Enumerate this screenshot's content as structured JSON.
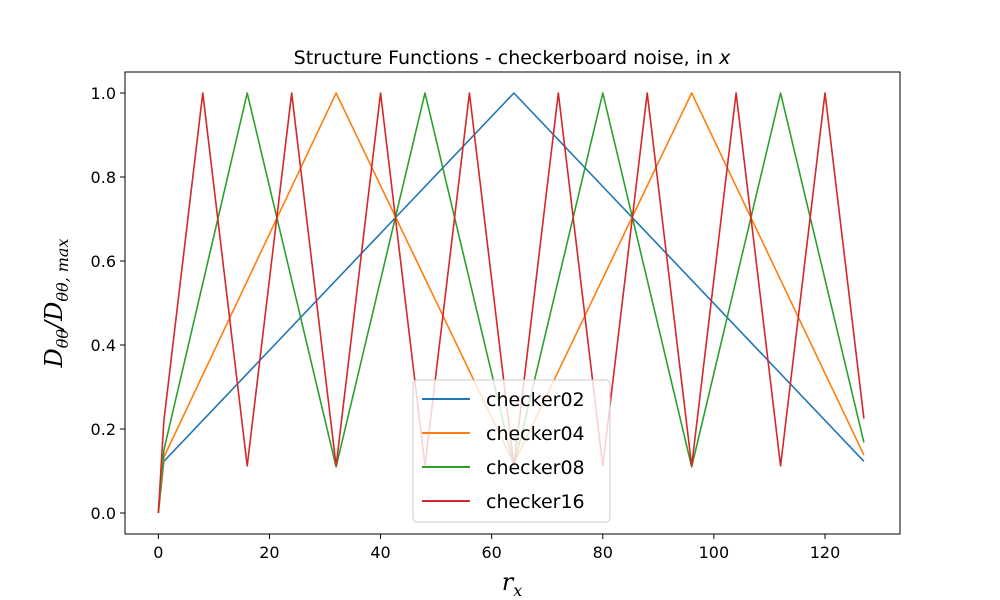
{
  "chart_data": {
    "type": "line",
    "title": "Structure Functions - checkerboard noise, in ",
    "title_var": "x",
    "xlabel": "r",
    "xlabel_sub": "x",
    "ylabel": "D",
    "ylabel_sub": "θθ",
    "ylabel_div": "/D",
    "ylabel_sub2": "θθ, max",
    "xlim": [
      -6,
      133.5
    ],
    "ylim": [
      -0.05,
      1.05
    ],
    "xticks": [
      0,
      20,
      40,
      60,
      80,
      100,
      120
    ],
    "xtick_labels": [
      "0",
      "20",
      "40",
      "60",
      "80",
      "100",
      "120"
    ],
    "yticks": [
      0.0,
      0.2,
      0.4,
      0.6,
      0.8,
      1.0
    ],
    "ytick_labels": [
      "0.0",
      "0.2",
      "0.4",
      "0.6",
      "0.8",
      "1.0"
    ],
    "legend_position": "lower-center",
    "series": [
      {
        "name": "checker02",
        "color": "#1f77b4",
        "x": [
          0,
          1,
          64,
          127
        ],
        "y": [
          0.0,
          0.123,
          1.0,
          0.123
        ]
      },
      {
        "name": "checker04",
        "color": "#ff7f0e",
        "x": [
          0,
          1,
          32,
          64,
          96,
          127
        ],
        "y": [
          0.0,
          0.133,
          1.0,
          0.117,
          1.0,
          0.138
        ]
      },
      {
        "name": "checker08",
        "color": "#2ca02c",
        "x": [
          0,
          1,
          16,
          32,
          48,
          64,
          80,
          96,
          112,
          127
        ],
        "y": [
          0.0,
          0.15,
          1.0,
          0.11,
          1.0,
          0.11,
          1.0,
          0.11,
          1.0,
          0.168
        ]
      },
      {
        "name": "checker16",
        "color": "#d62728",
        "x": [
          0,
          1,
          8,
          16,
          24,
          32,
          40,
          48,
          56,
          64,
          72,
          80,
          88,
          96,
          104,
          112,
          120,
          127
        ],
        "y": [
          0.0,
          0.22,
          1.0,
          0.112,
          1.0,
          0.112,
          1.0,
          0.112,
          1.0,
          0.112,
          1.0,
          0.112,
          1.0,
          0.112,
          1.0,
          0.112,
          1.0,
          0.225
        ]
      }
    ]
  }
}
